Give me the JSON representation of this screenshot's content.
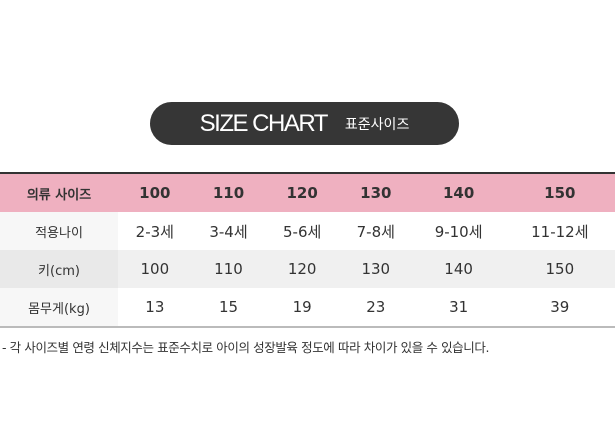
{
  "title": {
    "main": "SIZE CHART",
    "sub": "표준사이즈"
  },
  "table": {
    "header": [
      "의류 사이즈",
      "100",
      "110",
      "120",
      "130",
      "140",
      "150"
    ],
    "rows": [
      [
        "적용나이",
        "2-3세",
        "3-4세",
        "5-6세",
        "7-8세",
        "9-10세",
        "11-12세"
      ],
      [
        "키(cm)",
        "100",
        "110",
        "120",
        "130",
        "140",
        "150"
      ],
      [
        "몸무게(kg)",
        "13",
        "15",
        "19",
        "23",
        "31",
        "39"
      ]
    ]
  },
  "note": "- 각 사이즈별 연령 신체지수는 표준수치로 아이의 성장발육 정도에 따라 차이가 있을 수 있습니다.",
  "colors": {
    "header_bg": "#efb0c0",
    "pill_bg": "#363636"
  }
}
